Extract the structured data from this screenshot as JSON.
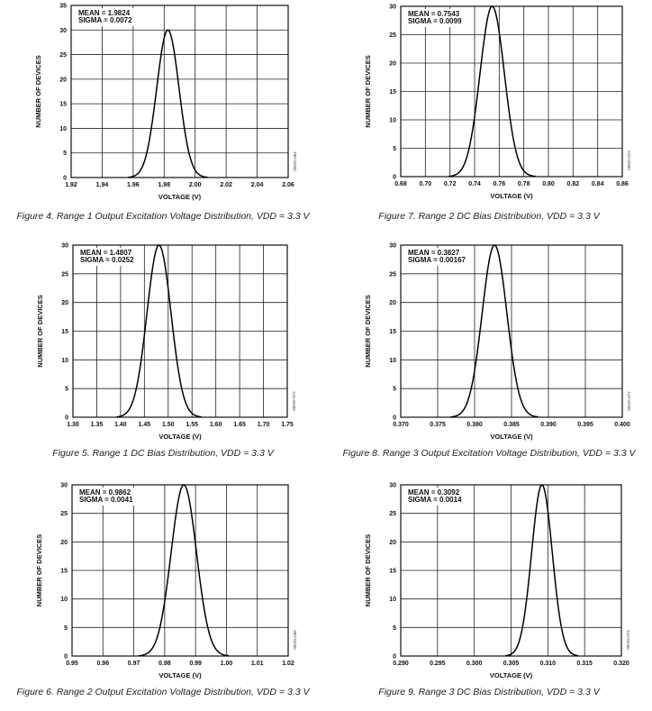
{
  "chart_data": [
    {
      "type": "line",
      "title": "",
      "caption": "Figure 4. Range 1 Output Excitation Voltage Distribution, VDD = 3.3 V",
      "xlabel": "VOLTAGE (V)",
      "ylabel": "NUMBER OF DEVICES",
      "xlim": [
        1.92,
        2.06
      ],
      "ylim": [
        0,
        35
      ],
      "xticks": [
        "1.92",
        "1.94",
        "1.96",
        "1.98",
        "2.00",
        "2.02",
        "2.04",
        "2.06"
      ],
      "yticks": [
        "0",
        "5",
        "10",
        "15",
        "20",
        "25",
        "30",
        "35"
      ],
      "grid": true,
      "annotation": [
        "MEAN = 1.9824",
        "SIGMA = 0.0072"
      ],
      "mean": 1.9824,
      "sigma": 0.0072,
      "peak": 30,
      "code": "05025-064"
    },
    {
      "type": "line",
      "title": "",
      "caption": "Figure 7. Range 2 DC Bias Distribution, VDD = 3.3 V",
      "xlabel": "VOLTAGE (V)",
      "ylabel": "NUMBER OF DEVICES",
      "xlim": [
        0.68,
        0.86
      ],
      "ylim": [
        0,
        30
      ],
      "xticks": [
        "0.68",
        "0.70",
        "0.72",
        "0.74",
        "0.76",
        "0.78",
        "0.80",
        "0.82",
        "0.84",
        "0.86"
      ],
      "yticks": [
        "0",
        "5",
        "10",
        "15",
        "20",
        "25",
        "30"
      ],
      "grid": true,
      "annotation": [
        "MEAN = 0.7543",
        "SIGMA = 0.0099"
      ],
      "mean": 0.7543,
      "sigma": 0.0099,
      "peak": 30,
      "code": "05025-073"
    },
    {
      "type": "line",
      "title": "",
      "caption": "Figure 5. Range 1 DC Bias Distribution, VDD = 3.3 V",
      "xlabel": "VOLTAGE (V)",
      "ylabel": "NUMBER OF DEVICES",
      "xlim": [
        1.3,
        1.75
      ],
      "ylim": [
        0,
        30
      ],
      "xticks": [
        "1.30",
        "1.35",
        "1.40",
        "1.45",
        "1.50",
        "1.55",
        "1.60",
        "1.65",
        "1.70",
        "1.75"
      ],
      "yticks": [
        "0",
        "5",
        "10",
        "15",
        "20",
        "25",
        "30"
      ],
      "grid": true,
      "annotation": [
        "MEAN = 1.4807",
        "SIGMA = 0.0252"
      ],
      "mean": 1.4807,
      "sigma": 0.0252,
      "peak": 30,
      "code": "05025-072"
    },
    {
      "type": "line",
      "title": "",
      "caption": "Figure 8. Range 3 Output Excitation Voltage Distribution, VDD = 3.3 V",
      "xlabel": "VOLTAGE (V)",
      "ylabel": "NUMBER OF DEVICES",
      "xlim": [
        0.37,
        0.4
      ],
      "ylim": [
        0,
        30
      ],
      "xticks": [
        "0.370",
        "0.375",
        "0.380",
        "0.385",
        "0.390",
        "0.395",
        "0.400"
      ],
      "yticks": [
        "0",
        "5",
        "10",
        "15",
        "20",
        "25",
        "30"
      ],
      "grid": true,
      "annotation": [
        "MEAN = 0.3827",
        "SIGMA = 0.00167"
      ],
      "mean": 0.3827,
      "sigma": 0.00167,
      "peak": 30,
      "code": "05025-077"
    },
    {
      "type": "line",
      "title": "",
      "caption": "Figure 6. Range 2 Output Excitation Voltage Distribution, VDD = 3.3 V",
      "xlabel": "VOLTAGE (V)",
      "ylabel": "NUMBER OF DEVICES",
      "xlim": [
        0.95,
        1.02
      ],
      "ylim": [
        0,
        30
      ],
      "xticks": [
        "0.95",
        "0.96",
        "0.97",
        "0.98",
        "0.99",
        "1.00",
        "1.01",
        "1.02"
      ],
      "yticks": [
        "0",
        "5",
        "10",
        "15",
        "20",
        "25",
        "30"
      ],
      "grid": true,
      "annotation": [
        "MEAN = 0.9862",
        "SIGMA = 0.0041"
      ],
      "mean": 0.9862,
      "sigma": 0.0041,
      "peak": 30,
      "code": "05025-066"
    },
    {
      "type": "line",
      "title": "",
      "caption": "Figure 9. Range 3 DC Bias Distribution, VDD = 3.3 V",
      "xlabel": "VOLTAGE (V)",
      "ylabel": "NUMBER OF DEVICES",
      "xlim": [
        0.29,
        0.32
      ],
      "ylim": [
        0,
        30
      ],
      "xticks": [
        "0.290",
        "0.295",
        "0.300",
        "0.305",
        "0.310",
        "0.315",
        "0.320"
      ],
      "yticks": [
        "0",
        "5",
        "10",
        "15",
        "20",
        "25",
        "30"
      ],
      "grid": true,
      "annotation": [
        "MEAN = 0.3092",
        "SIGMA = 0.0014"
      ],
      "mean": 0.3092,
      "sigma": 0.0014,
      "peak": 30,
      "code": "05025-074"
    }
  ]
}
